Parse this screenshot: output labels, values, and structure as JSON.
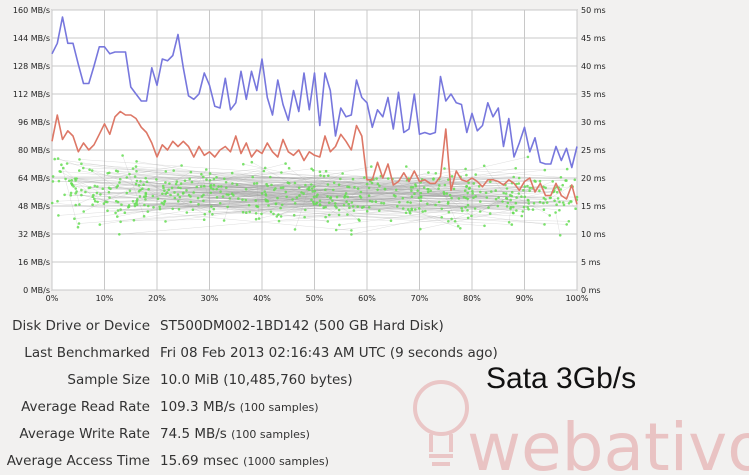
{
  "chart_data": {
    "type": "line",
    "x_ticks": [
      "0%",
      "10%",
      "20%",
      "30%",
      "40%",
      "50%",
      "60%",
      "70%",
      "80%",
      "90%",
      "100%"
    ],
    "y_left_ticks": [
      "0 MB/s",
      "16 MB/s",
      "32 MB/s",
      "48 MB/s",
      "64 MB/s",
      "80 MB/s",
      "96 MB/s",
      "112 MB/s",
      "128 MB/s",
      "144 MB/s",
      "160 MB/s"
    ],
    "y_right_ticks": [
      "0 ms",
      "5 ms",
      "10 ms",
      "15 ms",
      "20 ms",
      "25 ms",
      "30 ms",
      "35 ms",
      "40 ms",
      "45 ms",
      "50 ms"
    ],
    "x_range": [
      0,
      100
    ],
    "y_left_range": [
      0,
      160
    ],
    "y_right_range": [
      0,
      50
    ],
    "grid": true,
    "series": [
      {
        "color": "#7777dd",
        "x": [
          0,
          1,
          2,
          3,
          4,
          5,
          6,
          7,
          8,
          9,
          10,
          11,
          12,
          13,
          14,
          15,
          16,
          17,
          18,
          19,
          20,
          21,
          22,
          23,
          24,
          25,
          26,
          27,
          28,
          29,
          30,
          31,
          32,
          33,
          34,
          35,
          36,
          37,
          38,
          39,
          40,
          41,
          42,
          43,
          44,
          45,
          46,
          47,
          48,
          49,
          50,
          51,
          52,
          53,
          54,
          55,
          56,
          57,
          58,
          59,
          60,
          61,
          62,
          63,
          64,
          65,
          66,
          67,
          68,
          69,
          70,
          71,
          72,
          73,
          74,
          75,
          76,
          77,
          78,
          79,
          80,
          81,
          82,
          83,
          84,
          85,
          86,
          87,
          88,
          89,
          90,
          91,
          92,
          93,
          94,
          95,
          96,
          97,
          98,
          99,
          100
        ],
        "values": [
          135,
          141,
          156,
          141,
          141,
          129,
          118,
          118,
          128,
          139,
          139,
          135,
          136,
          136,
          136,
          116,
          112,
          108,
          108,
          127,
          117,
          132,
          131,
          134,
          146,
          127,
          111,
          109,
          112,
          124,
          117,
          105,
          104,
          121,
          103,
          107,
          125,
          109,
          125,
          114,
          132,
          110,
          100,
          120,
          106,
          97,
          114,
          102,
          124,
          103,
          124,
          94,
          124,
          114,
          88,
          104,
          99,
          100,
          120,
          110,
          107,
          93,
          103,
          99,
          110,
          92,
          113,
          90,
          92,
          112,
          89,
          90,
          89,
          90,
          122,
          108,
          112,
          107,
          106,
          90,
          101,
          91,
          94,
          107,
          99,
          104,
          82,
          98,
          76,
          84,
          93,
          79,
          87,
          73,
          72,
          72,
          82,
          74,
          81,
          70,
          82
        ]
      },
      {
        "color": "#dd7766",
        "x": [
          0,
          1,
          2,
          3,
          4,
          5,
          6,
          7,
          8,
          9,
          10,
          11,
          12,
          13,
          14,
          15,
          16,
          17,
          18,
          19,
          20,
          21,
          22,
          23,
          24,
          25,
          26,
          27,
          28,
          29,
          30,
          31,
          32,
          33,
          34,
          35,
          36,
          37,
          38,
          39,
          40,
          41,
          42,
          43,
          44,
          45,
          46,
          47,
          48,
          49,
          50,
          51,
          52,
          53,
          54,
          55,
          56,
          57,
          58,
          59,
          60,
          61,
          62,
          63,
          64,
          65,
          66,
          67,
          68,
          69,
          70,
          71,
          72,
          73,
          74,
          75,
          76,
          77,
          78,
          79,
          80,
          81,
          82,
          83,
          84,
          85,
          86,
          87,
          88,
          89,
          90,
          91,
          92,
          93,
          94,
          95,
          96,
          97,
          98,
          99,
          100
        ],
        "values": [
          85,
          100,
          86,
          91,
          88,
          79,
          84,
          80,
          83,
          89,
          95,
          89,
          99,
          102,
          100,
          100,
          98,
          93,
          90,
          84,
          76,
          83,
          80,
          85,
          82,
          85,
          82,
          76,
          82,
          77,
          79,
          76,
          80,
          82,
          79,
          88,
          78,
          84,
          76,
          80,
          78,
          84,
          79,
          76,
          86,
          79,
          77,
          80,
          74,
          79,
          77,
          76,
          88,
          79,
          82,
          89,
          85,
          80,
          94,
          88,
          63,
          63,
          73,
          64,
          72,
          60,
          62,
          67,
          62,
          68,
          62,
          63,
          61,
          61,
          65,
          92,
          57,
          68,
          63,
          62,
          64,
          62,
          59,
          63,
          63,
          62,
          60,
          63,
          61,
          57,
          62,
          64,
          56,
          61,
          54,
          54,
          61,
          54,
          52,
          60,
          49
        ]
      }
    ]
  },
  "overlay_label": "Sata 3Gb/s",
  "watermark_text": "webativo",
  "stats": [
    {
      "label": "Disk Drive or Device",
      "value": "ST500DM002-1BD142 (500 GB Hard Disk)",
      "note": ""
    },
    {
      "label": "Last Benchmarked",
      "value": "Fri 08 Feb 2013 02:16:43 AM UTC (9 seconds ago)",
      "note": ""
    },
    {
      "label": "Sample Size",
      "value": "10.0 MiB (10,485,760 bytes)",
      "note": ""
    },
    {
      "label": "Average Read Rate",
      "value": "109.3 MB/s",
      "note": "(100 samples)"
    },
    {
      "label": "Average Write Rate",
      "value": "74.5 MB/s",
      "note": "(100 samples)"
    },
    {
      "label": "Average Access Time",
      "value": "15.69 msec",
      "note": "(1000 samples)"
    }
  ],
  "colors": {
    "background": "#f2f1f0",
    "plot_background": "#ffffff",
    "grid": "#c8c8c8",
    "access_points": "#66dd55",
    "watermark": "#e8b8b8"
  }
}
